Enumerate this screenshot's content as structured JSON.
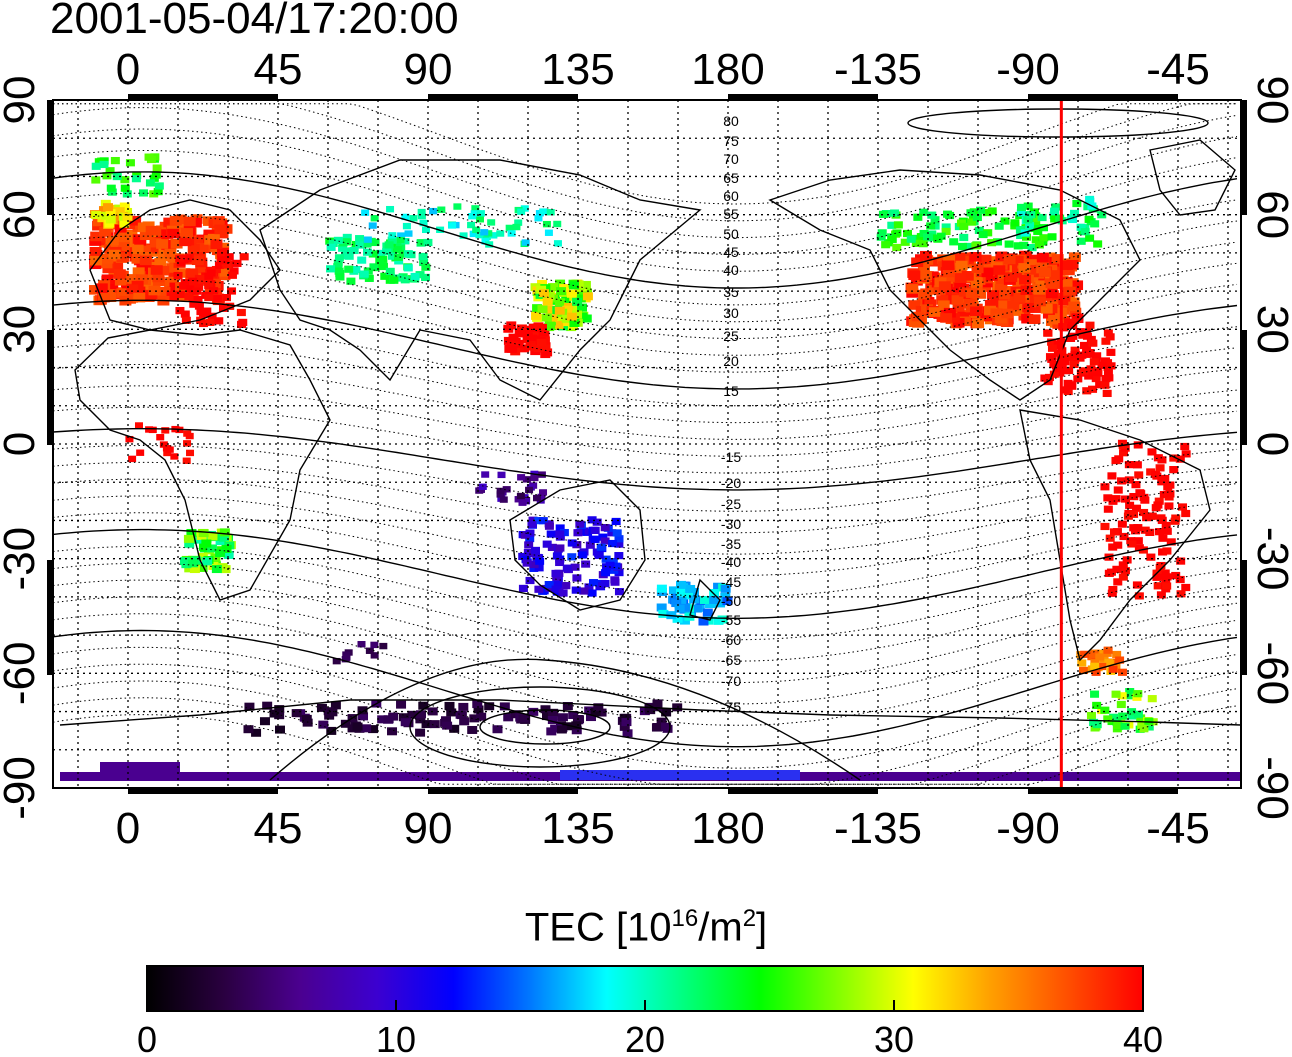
{
  "title": "2001-05-04/17:20:00",
  "map": {
    "lon_ticks": [
      "0",
      "45",
      "90",
      "135",
      "180",
      "-135",
      "-90",
      "-45"
    ],
    "lat_ticks": [
      "90",
      "60",
      "30",
      "0",
      "-30",
      "-60",
      "-90"
    ],
    "grid": true,
    "contour_labels": [
      "80",
      "75",
      "70",
      "65",
      "60",
      "55",
      "50",
      "45",
      "40",
      "35",
      "30",
      "25",
      "20",
      "15",
      "-15",
      "-20",
      "-25",
      "-30",
      "-35",
      "-40",
      "-45",
      "-50",
      "-55",
      "-60",
      "-65",
      "-70",
      "-75"
    ],
    "marker_line": {
      "longitude": -80,
      "color": "#ff0000"
    },
    "colors": {
      "axis": "#000000",
      "grid": "#000000",
      "coast": "#000000",
      "marker": "#ff0000"
    }
  },
  "colorbar": {
    "label_main": "TEC  [10",
    "label_exp1": "16",
    "label_mid": "/m",
    "label_exp2": "2",
    "label_end": "]",
    "ticks": [
      "0",
      "10",
      "20",
      "30",
      "40"
    ],
    "range": [
      0,
      40
    ],
    "colormap": [
      "#000000",
      "#2a0040",
      "#4b0090",
      "#3c00d0",
      "#0000ff",
      "#0078ff",
      "#00ffff",
      "#00ff80",
      "#00ff00",
      "#80ff00",
      "#ffff00",
      "#ffa000",
      "#ff5000",
      "#ff0000"
    ]
  }
}
